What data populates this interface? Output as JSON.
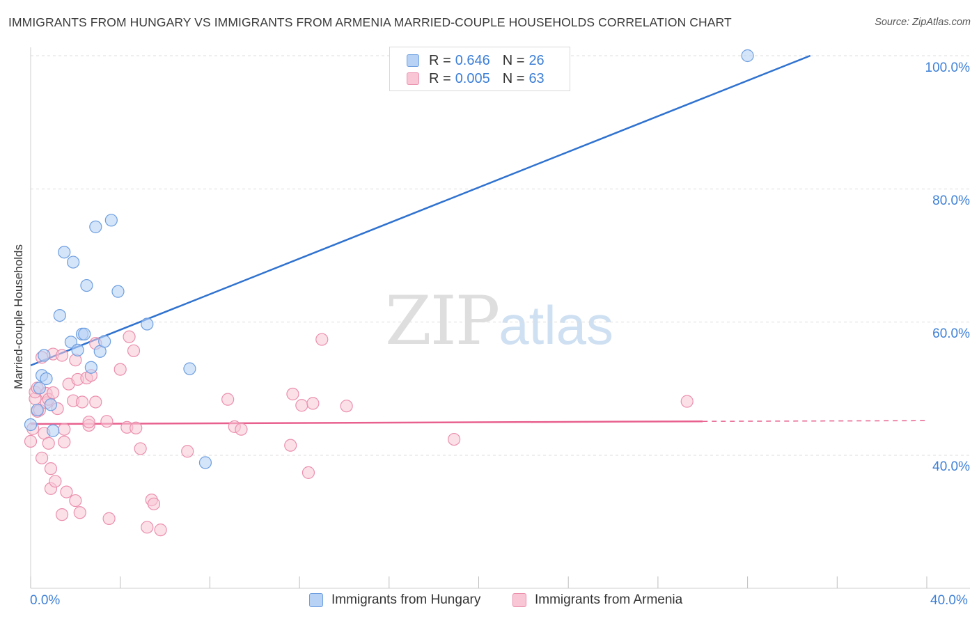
{
  "title": "IMMIGRANTS FROM HUNGARY VS IMMIGRANTS FROM ARMENIA MARRIED-COUPLE HOUSEHOLDS CORRELATION CHART",
  "source": "Source: ZipAtlas.com",
  "watermark": {
    "zip": "ZIP",
    "atlas": "atlas"
  },
  "legend": [
    {
      "r_label": "R = ",
      "r_value": "0.646",
      "n_label": "N = ",
      "n_value": "26"
    },
    {
      "r_label": "R = ",
      "r_value": "0.005",
      "n_label": "N = ",
      "n_value": "63"
    }
  ],
  "colors": {
    "hungary_fill": "#b8d2f5",
    "hungary_stroke": "#6e9fe0",
    "hungary_line": "#2f72cf",
    "armenia_fill": "#f8c6d5",
    "armenia_stroke": "#eb8fad",
    "armenia_line": "#e8608e",
    "tick_text": "#3d7fd6",
    "grid": "#dddddd"
  },
  "chart_data": {
    "type": "scatter",
    "title": "IMMIGRANTS FROM HUNGARY VS IMMIGRANTS FROM ARMENIA MARRIED-COUPLE HOUSEHOLDS CORRELATION CHART",
    "xlabel": "",
    "ylabel": "Married-couple Households",
    "xlim": [
      0,
      40
    ],
    "ylim": [
      20,
      102
    ],
    "x_tick_labels": [
      "0.0%",
      "40.0%"
    ],
    "y_ticks": [
      40,
      60,
      80,
      100
    ],
    "y_tick_labels": [
      "40.0%",
      "60.0%",
      "80.0%",
      "100.0%"
    ],
    "grid": true,
    "series": [
      {
        "name": "Immigrants from Hungary",
        "points": [
          [
            0.0,
            44.6
          ],
          [
            0.3,
            46.8
          ],
          [
            0.4,
            50.1
          ],
          [
            0.5,
            52.0
          ],
          [
            0.6,
            55.0
          ],
          [
            0.7,
            51.5
          ],
          [
            0.9,
            47.6
          ],
          [
            1.0,
            43.7
          ],
          [
            1.3,
            61.0
          ],
          [
            1.5,
            70.5
          ],
          [
            1.8,
            57.0
          ],
          [
            2.1,
            55.8
          ],
          [
            1.9,
            69.0
          ],
          [
            2.3,
            58.2
          ],
          [
            2.4,
            58.2
          ],
          [
            2.5,
            65.5
          ],
          [
            2.7,
            53.2
          ],
          [
            2.9,
            74.3
          ],
          [
            3.1,
            55.6
          ],
          [
            3.3,
            57.1
          ],
          [
            3.6,
            75.3
          ],
          [
            3.9,
            64.6
          ],
          [
            5.2,
            59.7
          ],
          [
            7.1,
            53.0
          ],
          [
            7.8,
            38.9
          ],
          [
            32.0,
            100.0
          ]
        ],
        "trend": {
          "x": [
            0,
            34.8
          ],
          "y": [
            53.5,
            100.0
          ],
          "style": "solid"
        }
      },
      {
        "name": "Immigrants from Armenia",
        "points": [
          [
            0.0,
            42.1
          ],
          [
            0.1,
            44.0
          ],
          [
            0.2,
            48.5
          ],
          [
            0.2,
            49.5
          ],
          [
            0.3,
            50.1
          ],
          [
            0.3,
            46.6
          ],
          [
            0.4,
            46.8
          ],
          [
            0.5,
            54.7
          ],
          [
            0.5,
            39.6
          ],
          [
            0.6,
            43.3
          ],
          [
            0.7,
            49.3
          ],
          [
            0.7,
            47.9
          ],
          [
            0.8,
            48.4
          ],
          [
            0.8,
            41.8
          ],
          [
            0.9,
            38.0
          ],
          [
            0.9,
            35.0
          ],
          [
            1.0,
            49.4
          ],
          [
            1.0,
            55.2
          ],
          [
            1.2,
            47.0
          ],
          [
            1.1,
            36.1
          ],
          [
            1.4,
            31.1
          ],
          [
            1.4,
            55.0
          ],
          [
            1.5,
            43.9
          ],
          [
            1.5,
            42.0
          ],
          [
            1.6,
            34.5
          ],
          [
            1.7,
            50.7
          ],
          [
            1.9,
            48.2
          ],
          [
            2.0,
            54.3
          ],
          [
            2.0,
            33.2
          ],
          [
            2.1,
            51.4
          ],
          [
            2.2,
            31.4
          ],
          [
            2.3,
            48.0
          ],
          [
            2.5,
            51.6
          ],
          [
            2.6,
            44.5
          ],
          [
            2.6,
            45.0
          ],
          [
            2.7,
            52.0
          ],
          [
            2.9,
            48.0
          ],
          [
            2.9,
            56.8
          ],
          [
            3.4,
            45.1
          ],
          [
            3.5,
            30.5
          ],
          [
            4.0,
            52.9
          ],
          [
            4.3,
            44.2
          ],
          [
            4.4,
            57.8
          ],
          [
            4.6,
            55.7
          ],
          [
            4.7,
            44.1
          ],
          [
            4.9,
            41.0
          ],
          [
            5.2,
            29.2
          ],
          [
            5.4,
            33.3
          ],
          [
            5.5,
            32.7
          ],
          [
            5.8,
            28.8
          ],
          [
            7.0,
            40.6
          ],
          [
            8.8,
            48.4
          ],
          [
            9.1,
            44.3
          ],
          [
            9.4,
            43.9
          ],
          [
            11.6,
            41.5
          ],
          [
            11.7,
            49.2
          ],
          [
            12.1,
            47.5
          ],
          [
            12.4,
            37.4
          ],
          [
            12.6,
            47.8
          ],
          [
            13.0,
            57.4
          ],
          [
            14.1,
            47.4
          ],
          [
            18.9,
            42.4
          ],
          [
            29.3,
            48.1
          ]
        ],
        "trend": {
          "x": [
            0,
            30.0,
            40.0
          ],
          "y": [
            44.7,
            45.1,
            45.2
          ],
          "style": "solid-then-dashed"
        }
      }
    ]
  }
}
